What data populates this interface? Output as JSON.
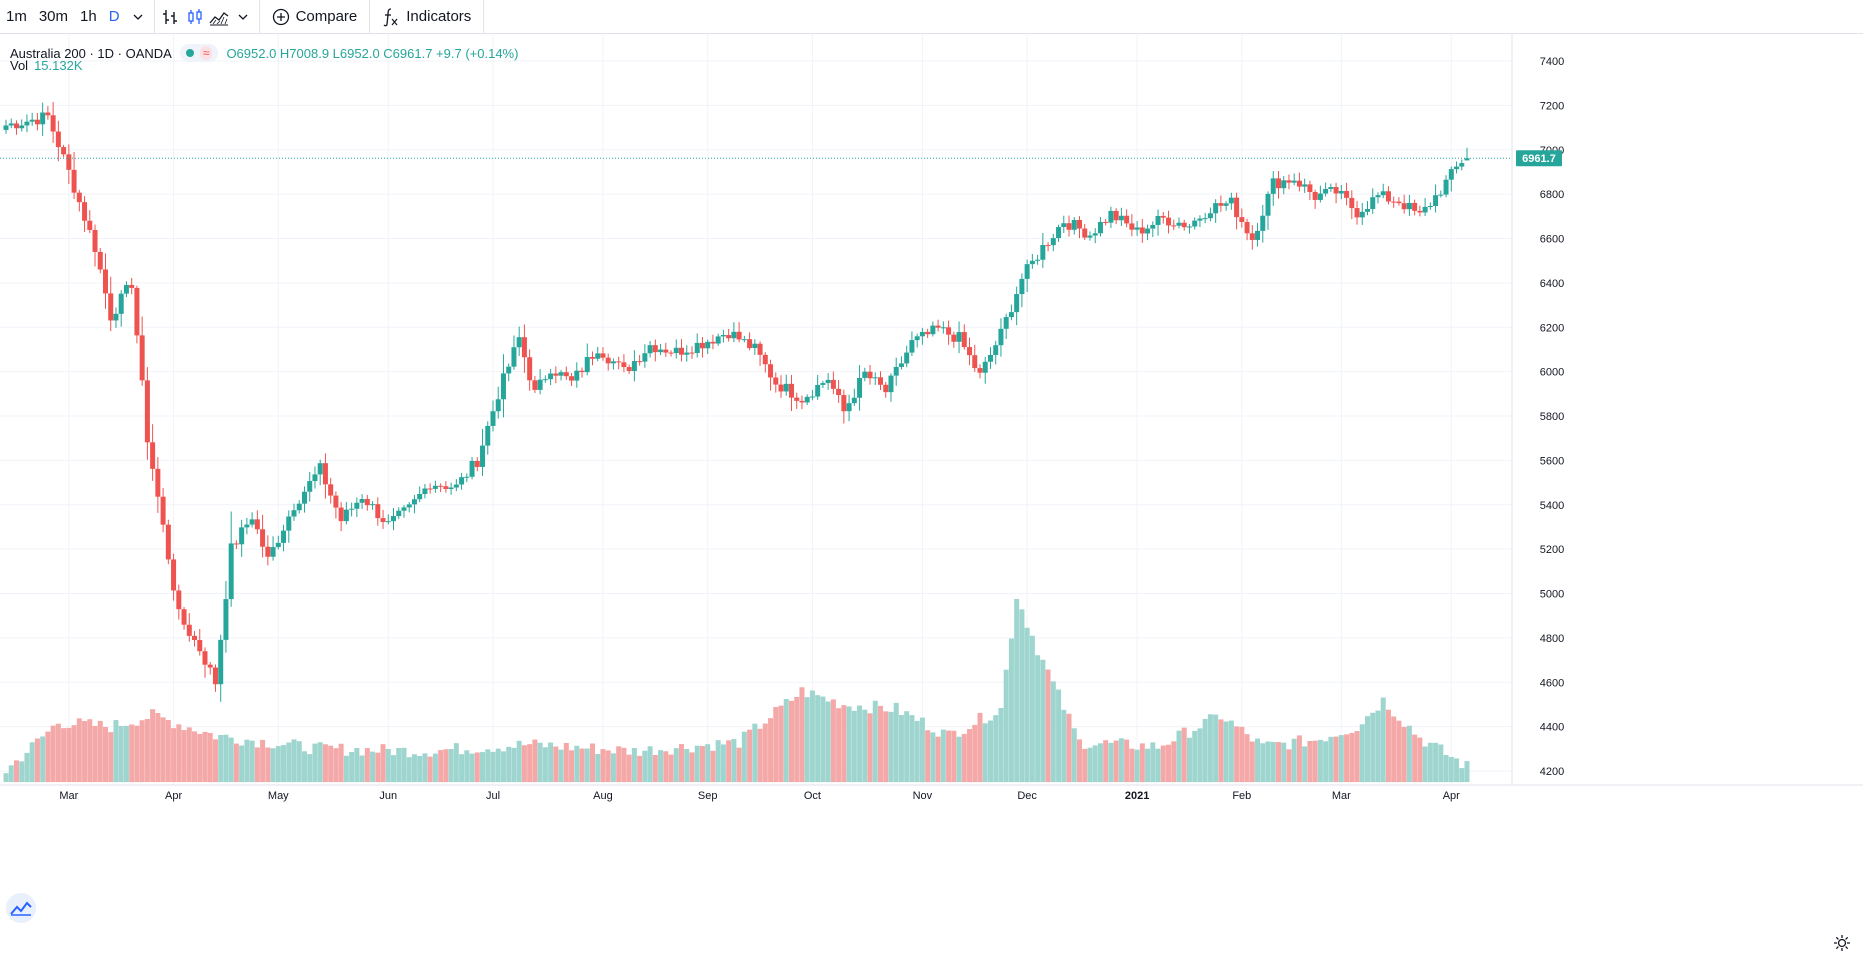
{
  "toolbar": {
    "intervals": [
      {
        "label": "1m",
        "active": false
      },
      {
        "label": "30m",
        "active": false
      },
      {
        "label": "1h",
        "active": false
      },
      {
        "label": "D",
        "active": true
      }
    ],
    "compare_label": "Compare",
    "indicators_label": "Indicators",
    "icons": [
      "chevron-down-icon",
      "bar-style-icon",
      "candle-style-icon",
      "area-style-icon",
      "chevron-down-icon",
      "plus-circle-icon",
      "fx-icon"
    ]
  },
  "legend": {
    "symbol": "Australia 200 · 1D · OANDA",
    "ohlc": "O6952.0 H7008.9 L6952.0 C6961.7 +9.7 (+0.14%)",
    "volume_label": "Vol",
    "volume_value": "15.132K"
  },
  "colors": {
    "up": "#26a69a",
    "down": "#ef5350",
    "up_volume": "#9fd5cf",
    "down_volume": "#f4a8a8",
    "grid": "#f0f3fa",
    "last_price_line": "#26a69a"
  },
  "chart_data": {
    "type": "candlestick",
    "title": "Australia 200 · 1D · OANDA",
    "price_axis": {
      "ticks": [
        4200,
        4400,
        4600,
        4800,
        5000,
        5200,
        5400,
        5600,
        5800,
        6000,
        6200,
        6400,
        6600,
        6800,
        7000,
        7200,
        7400
      ],
      "range": [
        4130,
        7480
      ]
    },
    "time_axis": {
      "labels": [
        "Mar",
        "Apr",
        "May",
        "Jun",
        "Jul",
        "Aug",
        "Sep",
        "Oct",
        "Nov",
        "Dec",
        "2021",
        "Feb",
        "Mar",
        "Apr"
      ]
    },
    "last_price": "6961.7",
    "grid": true,
    "series": [
      {
        "x_start": "2020-02-13",
        "x_end": "2021-04-06",
        "close_anchors": [
          [
            0,
            7110
          ],
          [
            8,
            7150
          ],
          [
            12,
            6900
          ],
          [
            17,
            6560
          ],
          [
            20,
            6250
          ],
          [
            24,
            6400
          ],
          [
            27,
            5700
          ],
          [
            30,
            5300
          ],
          [
            33,
            4900
          ],
          [
            37,
            4750
          ],
          [
            40,
            4600
          ],
          [
            43,
            5200
          ],
          [
            47,
            5350
          ],
          [
            50,
            5150
          ],
          [
            55,
            5400
          ],
          [
            60,
            5560
          ],
          [
            64,
            5330
          ],
          [
            68,
            5440
          ],
          [
            73,
            5310
          ],
          [
            77,
            5380
          ],
          [
            81,
            5500
          ],
          [
            86,
            5480
          ],
          [
            90,
            5600
          ],
          [
            94,
            5900
          ],
          [
            98,
            6150
          ],
          [
            101,
            5900
          ],
          [
            104,
            6020
          ],
          [
            108,
            5950
          ],
          [
            113,
            6110
          ],
          [
            118,
            6000
          ],
          [
            123,
            6120
          ],
          [
            128,
            6090
          ],
          [
            133,
            6130
          ],
          [
            138,
            6180
          ],
          [
            143,
            6100
          ],
          [
            147,
            5950
          ],
          [
            152,
            5880
          ],
          [
            157,
            5970
          ],
          [
            160,
            5820
          ],
          [
            164,
            5990
          ],
          [
            168,
            5910
          ],
          [
            173,
            6130
          ],
          [
            178,
            6190
          ],
          [
            182,
            6150
          ],
          [
            186,
            5980
          ],
          [
            190,
            6170
          ],
          [
            194,
            6420
          ],
          [
            198,
            6560
          ],
          [
            202,
            6680
          ],
          [
            207,
            6620
          ],
          [
            211,
            6710
          ],
          [
            216,
            6630
          ],
          [
            221,
            6690
          ],
          [
            226,
            6660
          ],
          [
            230,
            6740
          ],
          [
            234,
            6760
          ],
          [
            238,
            6600
          ],
          [
            242,
            6850
          ],
          [
            246,
            6870
          ],
          [
            250,
            6790
          ],
          [
            254,
            6810
          ],
          [
            258,
            6720
          ],
          [
            262,
            6790
          ],
          [
            266,
            6770
          ],
          [
            270,
            6700
          ],
          [
            274,
            6820
          ],
          [
            278,
            6950
          ],
          [
            279,
            6962
          ]
        ],
        "volume_anchors": [
          [
            0,
            4200
          ],
          [
            10,
            4420
          ],
          [
            20,
            4400
          ],
          [
            28,
            4450
          ],
          [
            40,
            4360
          ],
          [
            60,
            4300
          ],
          [
            80,
            4290
          ],
          [
            100,
            4320
          ],
          [
            120,
            4290
          ],
          [
            140,
            4330
          ],
          [
            152,
            4560
          ],
          [
            160,
            4500
          ],
          [
            170,
            4480
          ],
          [
            180,
            4360
          ],
          [
            190,
            4480
          ],
          [
            193,
            4990
          ],
          [
            197,
            4750
          ],
          [
            205,
            4330
          ],
          [
            220,
            4310
          ],
          [
            232,
            4450
          ],
          [
            240,
            4310
          ],
          [
            250,
            4340
          ],
          [
            258,
            4400
          ],
          [
            263,
            4520
          ],
          [
            270,
            4350
          ],
          [
            279,
            4220
          ]
        ]
      }
    ]
  }
}
